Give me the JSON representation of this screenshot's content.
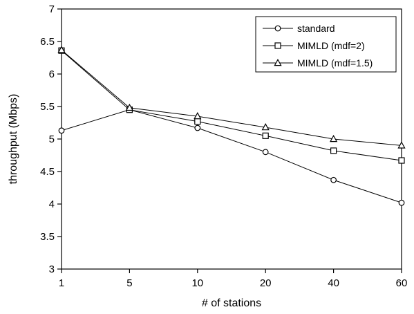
{
  "chart_data": {
    "type": "line",
    "title": "",
    "xlabel": "# of stations",
    "ylabel": "throughput (Mbps)",
    "categories": [
      "1",
      "5",
      "10",
      "20",
      "40",
      "60"
    ],
    "ylim": [
      3,
      7
    ],
    "yticks": [
      "3",
      "3.5",
      "4",
      "4.5",
      "5",
      "5.5",
      "6",
      "6.5",
      "7"
    ],
    "grid": false,
    "legend_position": "top-right",
    "series": [
      {
        "name": "standard",
        "marker": "circle",
        "values": [
          5.13,
          5.45,
          5.17,
          4.8,
          4.37,
          4.02
        ]
      },
      {
        "name": "MIMLD (mdf=2)",
        "marker": "square",
        "values": [
          6.36,
          5.45,
          5.27,
          5.05,
          4.82,
          4.67
        ]
      },
      {
        "name": "MIMLD (mdf=1.5)",
        "marker": "triangle",
        "values": [
          6.37,
          5.48,
          5.35,
          5.18,
          5.0,
          4.9
        ]
      }
    ],
    "colors": {
      "line": "#000000",
      "marker_fill": "#ffffff",
      "background": "#ffffff"
    }
  }
}
